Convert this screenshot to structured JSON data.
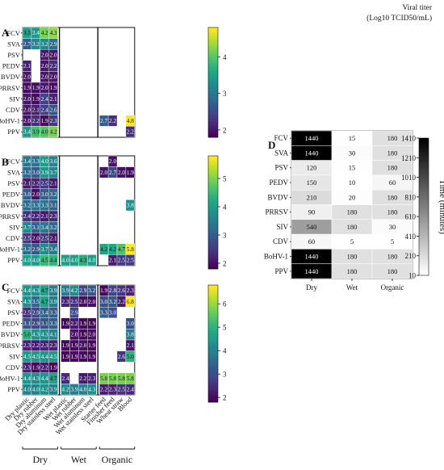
{
  "colorbar_title": [
    "Viral titer",
    "(Log10 TCID50/mL)"
  ],
  "groups": [
    "Dry",
    "Wet",
    "Organic"
  ],
  "surfaces": [
    "Dry plastic",
    "Dry rubber",
    "Dry aluminum",
    "Dry stainless steel",
    "Wet plastic",
    "Wet rubber",
    "Wet aluminum",
    "Wet stainless steel",
    "Starter feed",
    "Finisher feed",
    "Wheat straw",
    "Blood"
  ],
  "chart_data": [
    {
      "type": "heatmap",
      "panel": "A",
      "rows": [
        "FCV",
        "SVA",
        "PSV",
        "PEDV",
        "BVDV",
        "PRRSV",
        "SIV",
        "CDV",
        "BoHV-1",
        "PPV"
      ],
      "columns": [
        "Dry plastic",
        "Dry rubber",
        "Dry aluminum",
        "Dry stainless steel",
        "Wet plastic",
        "Wet rubber",
        "Wet aluminum",
        "Wet stainless steel",
        "Starter feed",
        "Finisher feed",
        "Wheat straw",
        "Blood"
      ],
      "values": [
        [
          3.5,
          3.4,
          4.2,
          4.3,
          null,
          null,
          null,
          null,
          null,
          null,
          null,
          null
        ],
        [
          2.7,
          3.2,
          3.2,
          2.9,
          null,
          null,
          null,
          null,
          null,
          null,
          null,
          null
        ],
        [
          null,
          null,
          2.0,
          2.0,
          null,
          null,
          null,
          null,
          null,
          null,
          null,
          null
        ],
        [
          2.1,
          null,
          2.0,
          2.2,
          null,
          null,
          null,
          null,
          null,
          null,
          null,
          null
        ],
        [
          2.0,
          null,
          2.0,
          2.0,
          null,
          null,
          null,
          null,
          null,
          null,
          null,
          null
        ],
        [
          1.9,
          1.9,
          2.0,
          1.9,
          null,
          null,
          null,
          null,
          null,
          null,
          null,
          null
        ],
        [
          2.0,
          1.9,
          2.4,
          2.1,
          null,
          null,
          null,
          null,
          null,
          null,
          null,
          null
        ],
        [
          2.0,
          2.1,
          2.4,
          2.6,
          null,
          null,
          null,
          null,
          null,
          null,
          null,
          null
        ],
        [
          2.0,
          2.2,
          1.9,
          2.3,
          null,
          null,
          null,
          null,
          2.7,
          2.2,
          null,
          4.8
        ],
        [
          3.4,
          3.9,
          4.0,
          4.2,
          null,
          null,
          null,
          null,
          null,
          null,
          null,
          2.2
        ]
      ],
      "colorbar": {
        "min": 1.8,
        "max": 4.8,
        "ticks": [
          2,
          3,
          4
        ]
      }
    },
    {
      "type": "heatmap",
      "panel": "B",
      "rows": [
        "FCV",
        "SVA",
        "PSV",
        "PEDV",
        "BVDV",
        "PRRSV",
        "SIV",
        "CDV",
        "BoHV-1",
        "PPV"
      ],
      "columns": [
        "Dry plastic",
        "Dry rubber",
        "Dry aluminum",
        "Dry stainless steel",
        "Wet plastic",
        "Wet rubber",
        "Wet aluminum",
        "Wet stainless steel",
        "Starter feed",
        "Finisher feed",
        "Wheat straw",
        "Blood"
      ],
      "values": [
        [
          3.4,
          3.3,
          4.0,
          3.6,
          null,
          null,
          null,
          null,
          null,
          2.0,
          null,
          null
        ],
        [
          3.2,
          3.0,
          3.9,
          3.7,
          null,
          null,
          null,
          null,
          2.0,
          2.7,
          2.0,
          1.9
        ],
        [
          2.1,
          2.2,
          2.5,
          2.1,
          null,
          null,
          null,
          null,
          null,
          null,
          null,
          null
        ],
        [
          3.0,
          2.0,
          3.0,
          3.2,
          null,
          null,
          null,
          null,
          null,
          null,
          null,
          null
        ],
        [
          3.2,
          3.3,
          3.3,
          3.1,
          null,
          null,
          null,
          null,
          null,
          null,
          null,
          3.8
        ],
        [
          2.4,
          2.2,
          2.1,
          2.3,
          null,
          null,
          null,
          null,
          null,
          null,
          null,
          null
        ],
        [
          3.7,
          3.1,
          3.4,
          3.2,
          null,
          null,
          null,
          null,
          null,
          null,
          null,
          null
        ],
        [
          2.5,
          2.0,
          2.5,
          2.1,
          null,
          null,
          null,
          null,
          null,
          null,
          null,
          null
        ],
        [
          3.2,
          2.9,
          3.7,
          3.4,
          null,
          null,
          null,
          null,
          4.2,
          4.2,
          4.7,
          5.8
        ],
        [
          4.0,
          4.0,
          4.5,
          4.4,
          4.0,
          4.0,
          4.3,
          4.0,
          null,
          2.1,
          2.5,
          2.5
        ]
      ],
      "colorbar": {
        "min": 1.8,
        "max": 5.8,
        "ticks": [
          2,
          3,
          4,
          5
        ]
      }
    },
    {
      "type": "heatmap",
      "panel": "C",
      "rows": [
        "FCV",
        "SVA",
        "PSV",
        "PEDV",
        "BVDV",
        "PRRSV",
        "SIV",
        "CDV",
        "BoHV-1",
        "PPV"
      ],
      "columns": [
        "Dry plastic",
        "Dry rubber",
        "Dry aluminum",
        "Dry stainless steel",
        "Wet plastic",
        "Wet rubber",
        "Wet aluminum",
        "Wet stainless steel",
        "Starter feed",
        "Finisher feed",
        "Wheat straw",
        "Blood"
      ],
      "values": [
        [
          4.4,
          4.3,
          4.7,
          3.9,
          3.9,
          4.2,
          2.9,
          3.2,
          1.9,
          2.8,
          2.6,
          2.3
        ],
        [
          4.3,
          3.5,
          4.7,
          3.9,
          2.3,
          2.5,
          2.0,
          2.0,
          3.0,
          3.2,
          2.2,
          6.8
        ],
        [
          2.5,
          2.9,
          3.4,
          3.3,
          null,
          2.9,
          null,
          null,
          3.3,
          3.0,
          null,
          null
        ],
        [
          3.1,
          2.9,
          3.1,
          3.3,
          1.9,
          2.2,
          1.9,
          1.9,
          null,
          null,
          null,
          3.0
        ],
        [
          5.0,
          4.3,
          4.3,
          4.1,
          null,
          2.0,
          1.9,
          2.0,
          null,
          null,
          null,
          3.8
        ],
        [
          2.3,
          2.2,
          2.3,
          2.3,
          1.9,
          1.9,
          2.0,
          1.9,
          null,
          null,
          null,
          2.1
        ],
        [
          4.5,
          4.5,
          4.4,
          4.5,
          1.9,
          1.9,
          1.9,
          1.9,
          null,
          null,
          2.6,
          5.0
        ],
        [
          2.3,
          1.9,
          2.2,
          1.9,
          null,
          null,
          null,
          null,
          null,
          null,
          null,
          null
        ],
        [
          4.4,
          4.3,
          4.4,
          4.7,
          2.4,
          null,
          2.2,
          2.3,
          5.8,
          5.8,
          5.8,
          5.8
        ],
        [
          4.0,
          4.0,
          4.2,
          3.9,
          4.2,
          3.9,
          4.0,
          4.3,
          2.2,
          2.3,
          2.5,
          2.4
        ]
      ],
      "colorbar": {
        "min": 1.8,
        "max": 6.8,
        "ticks": [
          2,
          3,
          4,
          5,
          6
        ]
      }
    },
    {
      "type": "heatmap",
      "panel": "D",
      "rows": [
        "FCV",
        "SVA",
        "PSV",
        "PEDV",
        "BVDV",
        "PRRSV",
        "SIV",
        "CDV",
        "BoHV-1",
        "PPV"
      ],
      "columns": [
        "Dry",
        "Wet",
        "Organic"
      ],
      "values": [
        [
          1440,
          15,
          180
        ],
        [
          1440,
          30,
          180
        ],
        [
          120,
          15,
          180
        ],
        [
          150,
          10,
          60
        ],
        [
          210,
          20,
          180
        ],
        [
          90,
          180,
          180
        ],
        [
          540,
          180,
          30
        ],
        [
          60,
          5,
          5
        ],
        [
          1440,
          180,
          180
        ],
        [
          1440,
          180,
          180
        ]
      ],
      "colorbar": {
        "min": 10,
        "max": 1410,
        "ticks": [
          10,
          210,
          410,
          610,
          810,
          1010,
          1210,
          1410
        ],
        "title": "Time (minutes)"
      }
    }
  ]
}
